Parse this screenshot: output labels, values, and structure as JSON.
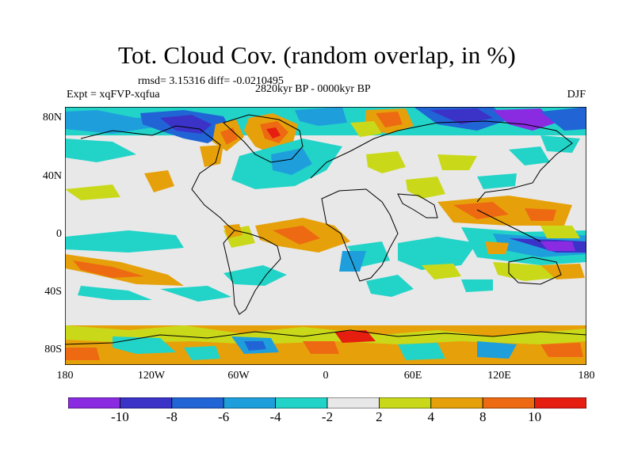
{
  "title": "Tot. Cloud Cov. (random overlap, in %)",
  "stats_line": "rmsd= 3.15316 diff= -0.0210495",
  "experiment": "Expt = xqFVP-xqfua",
  "period": "2820kyr BP - 0000kyr BP",
  "season": "DJF",
  "lat_labels": [
    "80N",
    "40N",
    "0",
    "40S",
    "80S"
  ],
  "lon_labels": [
    "180",
    "120W",
    "60W",
    "0",
    "60E",
    "120E",
    "180"
  ],
  "colorbar": {
    "colors": [
      "#8a2be2",
      "#3b32c8",
      "#2164d6",
      "#1e9fdc",
      "#22d3c8",
      "#e8e8e8",
      "#c9d91a",
      "#e6a10a",
      "#ed6a12",
      "#e51e10"
    ],
    "tick_labels": [
      "-10",
      "-8",
      "-6",
      "-4",
      "-2",
      "2",
      "4",
      "8",
      "10"
    ]
  }
}
